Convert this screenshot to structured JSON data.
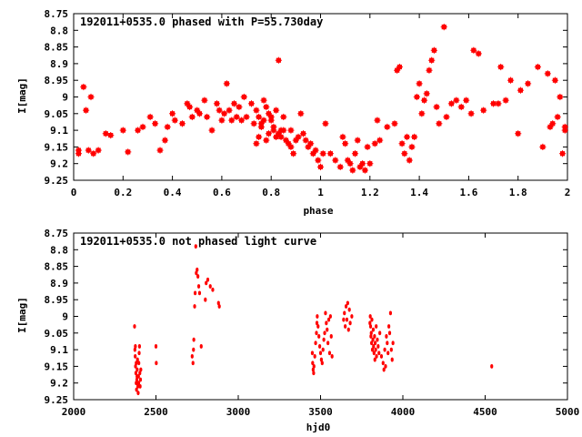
{
  "chart_data": [
    {
      "type": "scatter",
      "title": "192011+0535.0 phased with P=55.730day",
      "xlabel": "phase",
      "ylabel": "I[mag]",
      "xlim": [
        0,
        2
      ],
      "ylim": [
        8.75,
        9.25
      ],
      "y_inverted": true,
      "xticks": [
        "0",
        "0.2",
        "0.4",
        "0.6",
        "0.8",
        "1",
        "1.2",
        "1.4",
        "1.6",
        "1.8",
        "2"
      ],
      "yticks": [
        "8.75",
        "8.8",
        "8.85",
        "8.9",
        "8.95",
        "9",
        "9.05",
        "9.1",
        "9.15",
        "9.2",
        "9.25"
      ],
      "grid": false,
      "marker": "star",
      "color": "#ff0000",
      "points": [
        [
          0.02,
          9.16
        ],
        [
          0.02,
          9.17
        ],
        [
          0.04,
          8.97
        ],
        [
          0.05,
          9.04
        ],
        [
          0.06,
          9.16
        ],
        [
          0.07,
          9.0
        ],
        [
          0.08,
          9.17
        ],
        [
          0.1,
          9.16
        ],
        [
          0.13,
          9.11
        ],
        [
          0.15,
          9.115
        ],
        [
          0.2,
          9.1
        ],
        [
          0.22,
          9.165
        ],
        [
          0.26,
          9.1
        ],
        [
          0.28,
          9.09
        ],
        [
          0.31,
          9.06
        ],
        [
          0.33,
          9.08
        ],
        [
          0.35,
          9.16
        ],
        [
          0.37,
          9.13
        ],
        [
          0.38,
          9.09
        ],
        [
          0.4,
          9.05
        ],
        [
          0.41,
          9.07
        ],
        [
          0.44,
          9.08
        ],
        [
          0.46,
          9.02
        ],
        [
          0.47,
          9.03
        ],
        [
          0.48,
          9.06
        ],
        [
          0.5,
          9.04
        ],
        [
          0.51,
          9.05
        ],
        [
          0.53,
          9.01
        ],
        [
          0.54,
          9.06
        ],
        [
          0.56,
          9.1
        ],
        [
          0.58,
          9.02
        ],
        [
          0.59,
          9.04
        ],
        [
          0.6,
          9.07
        ],
        [
          0.61,
          9.05
        ],
        [
          0.62,
          8.96
        ],
        [
          0.63,
          9.04
        ],
        [
          0.64,
          9.07
        ],
        [
          0.65,
          9.02
        ],
        [
          0.66,
          9.06
        ],
        [
          0.67,
          9.03
        ],
        [
          0.68,
          9.07
        ],
        [
          0.69,
          9.0
        ],
        [
          0.7,
          9.06
        ],
        [
          0.72,
          9.02
        ],
        [
          0.73,
          9.08
        ],
        [
          0.74,
          9.04
        ],
        [
          0.75,
          9.06
        ],
        [
          0.76,
          9.08
        ],
        [
          0.77,
          9.01
        ],
        [
          0.78,
          9.03
        ],
        [
          0.79,
          9.05
        ],
        [
          0.8,
          9.07
        ],
        [
          0.81,
          9.09
        ],
        [
          0.82,
          9.04
        ],
        [
          0.83,
          9.11
        ],
        [
          0.84,
          9.12
        ],
        [
          0.85,
          9.1
        ],
        [
          0.86,
          9.13
        ],
        [
          0.87,
          9.14
        ],
        [
          0.88,
          9.1
        ],
        [
          0.74,
          9.14
        ],
        [
          0.75,
          9.12
        ],
        [
          0.76,
          9.09
        ],
        [
          0.77,
          9.07
        ],
        [
          0.78,
          9.13
        ],
        [
          0.79,
          9.11
        ],
        [
          0.8,
          9.06
        ],
        [
          0.81,
          9.1
        ],
        [
          0.82,
          9.12
        ],
        [
          0.83,
          8.89
        ],
        [
          0.84,
          9.1
        ],
        [
          0.85,
          9.06
        ],
        [
          0.88,
          9.15
        ],
        [
          0.89,
          9.17
        ],
        [
          0.9,
          9.13
        ],
        [
          0.91,
          9.12
        ],
        [
          0.92,
          9.05
        ],
        [
          0.93,
          9.11
        ],
        [
          0.94,
          9.13
        ],
        [
          0.95,
          9.15
        ],
        [
          0.96,
          9.14
        ],
        [
          0.97,
          9.17
        ],
        [
          0.98,
          9.16
        ],
        [
          0.99,
          9.19
        ],
        [
          1.0,
          9.21
        ],
        [
          1.01,
          9.17
        ],
        [
          1.02,
          9.08
        ],
        [
          1.04,
          9.17
        ],
        [
          1.06,
          9.19
        ],
        [
          1.08,
          9.21
        ],
        [
          1.09,
          9.12
        ],
        [
          1.1,
          9.14
        ],
        [
          1.11,
          9.19
        ],
        [
          1.12,
          9.2
        ],
        [
          1.13,
          9.22
        ],
        [
          1.14,
          9.17
        ],
        [
          1.15,
          9.13
        ],
        [
          1.16,
          9.21
        ],
        [
          1.17,
          9.2
        ],
        [
          1.18,
          9.22
        ],
        [
          1.19,
          9.15
        ],
        [
          1.2,
          9.2
        ],
        [
          1.22,
          9.14
        ],
        [
          1.23,
          9.07
        ],
        [
          1.24,
          9.13
        ],
        [
          1.27,
          9.09
        ],
        [
          1.3,
          9.08
        ],
        [
          1.31,
          8.92
        ],
        [
          1.32,
          8.91
        ],
        [
          1.33,
          9.14
        ],
        [
          1.34,
          9.17
        ],
        [
          1.35,
          9.12
        ],
        [
          1.36,
          9.19
        ],
        [
          1.37,
          9.15
        ],
        [
          1.38,
          9.12
        ],
        [
          1.39,
          9.0
        ],
        [
          1.4,
          8.96
        ],
        [
          1.41,
          9.05
        ],
        [
          1.42,
          9.01
        ],
        [
          1.43,
          8.99
        ],
        [
          1.44,
          8.92
        ],
        [
          1.45,
          8.89
        ],
        [
          1.46,
          8.86
        ],
        [
          1.47,
          9.03
        ],
        [
          1.48,
          9.08
        ],
        [
          1.5,
          8.79
        ],
        [
          1.51,
          9.06
        ],
        [
          1.53,
          9.02
        ],
        [
          1.55,
          9.01
        ],
        [
          1.57,
          9.03
        ],
        [
          1.59,
          9.01
        ],
        [
          1.61,
          9.05
        ],
        [
          1.62,
          8.86
        ],
        [
          1.64,
          8.87
        ],
        [
          1.66,
          9.04
        ],
        [
          1.7,
          9.02
        ],
        [
          1.72,
          9.02
        ],
        [
          1.73,
          8.91
        ],
        [
          1.75,
          9.01
        ],
        [
          1.77,
          8.95
        ],
        [
          1.8,
          9.11
        ],
        [
          1.81,
          8.98
        ],
        [
          1.84,
          8.96
        ],
        [
          1.88,
          8.91
        ],
        [
          1.9,
          9.15
        ],
        [
          1.92,
          8.93
        ],
        [
          1.93,
          9.09
        ],
        [
          1.94,
          9.08
        ],
        [
          1.95,
          8.95
        ],
        [
          1.96,
          9.06
        ],
        [
          1.97,
          9.0
        ],
        [
          1.98,
          9.17
        ],
        [
          1.99,
          9.1
        ],
        [
          1.99,
          9.09
        ]
      ]
    },
    {
      "type": "scatter",
      "title": "192011+0535.0 not phased light curve",
      "xlabel": "hjd0",
      "ylabel": "I[mag]",
      "xlim": [
        2000,
        5000
      ],
      "ylim": [
        8.75,
        9.25
      ],
      "y_inverted": true,
      "xticks": [
        "2000",
        "2500",
        "3000",
        "3500",
        "4000",
        "4500",
        "5000"
      ],
      "yticks": [
        "8.75",
        "8.8",
        "8.85",
        "8.9",
        "8.95",
        "9",
        "9.05",
        "9.1",
        "9.15",
        "9.2",
        "9.25"
      ],
      "grid": false,
      "marker": "dot",
      "color": "#ff0000",
      "points": [
        [
          2370,
          9.03
        ],
        [
          2372,
          9.1
        ],
        [
          2374,
          9.12
        ],
        [
          2376,
          9.15
        ],
        [
          2378,
          9.17
        ],
        [
          2380,
          9.2
        ],
        [
          2382,
          9.22
        ],
        [
          2384,
          9.19
        ],
        [
          2386,
          9.16
        ],
        [
          2388,
          9.13
        ],
        [
          2390,
          9.21
        ],
        [
          2392,
          9.23
        ],
        [
          2394,
          9.18
        ],
        [
          2396,
          9.14
        ],
        [
          2398,
          9.11
        ],
        [
          2400,
          9.09
        ],
        [
          2402,
          9.17
        ],
        [
          2404,
          9.21
        ],
        [
          2406,
          9.19
        ],
        [
          2408,
          9.16
        ],
        [
          2375,
          9.09
        ],
        [
          2380,
          9.14
        ],
        [
          2385,
          9.18
        ],
        [
          2395,
          9.2
        ],
        [
          2500,
          9.09
        ],
        [
          2502,
          9.14
        ],
        [
          2720,
          9.12
        ],
        [
          2725,
          9.14
        ],
        [
          2728,
          9.1
        ],
        [
          2730,
          9.07
        ],
        [
          2735,
          8.97
        ],
        [
          2738,
          8.93
        ],
        [
          2742,
          8.79
        ],
        [
          2745,
          8.87
        ],
        [
          2750,
          8.86
        ],
        [
          2755,
          8.88
        ],
        [
          2760,
          8.91
        ],
        [
          2765,
          8.93
        ],
        [
          2775,
          9.09
        ],
        [
          2800,
          8.95
        ],
        [
          2805,
          8.9
        ],
        [
          2815,
          8.89
        ],
        [
          2830,
          8.91
        ],
        [
          2845,
          8.92
        ],
        [
          2880,
          8.96
        ],
        [
          2885,
          8.97
        ],
        [
          3450,
          9.11
        ],
        [
          3452,
          9.14
        ],
        [
          3455,
          9.16
        ],
        [
          3458,
          9.17
        ],
        [
          3460,
          9.15
        ],
        [
          3465,
          9.12
        ],
        [
          3470,
          9.08
        ],
        [
          3475,
          9.05
        ],
        [
          3478,
          9.02
        ],
        [
          3480,
          9.0
        ],
        [
          3485,
          9.03
        ],
        [
          3490,
          9.06
        ],
        [
          3495,
          9.09
        ],
        [
          3500,
          9.11
        ],
        [
          3505,
          9.13
        ],
        [
          3510,
          9.14
        ],
        [
          3515,
          9.1
        ],
        [
          3520,
          9.07
        ],
        [
          3525,
          9.05
        ],
        [
          3530,
          8.99
        ],
        [
          3535,
          9.02
        ],
        [
          3540,
          9.04
        ],
        [
          3545,
          9.08
        ],
        [
          3550,
          9.01
        ],
        [
          3555,
          9.11
        ],
        [
          3560,
          9.0
        ],
        [
          3565,
          9.06
        ],
        [
          3570,
          9.12
        ],
        [
          3640,
          9.01
        ],
        [
          3645,
          8.99
        ],
        [
          3650,
          9.03
        ],
        [
          3655,
          8.97
        ],
        [
          3660,
          9.01
        ],
        [
          3665,
          8.96
        ],
        [
          3670,
          9.04
        ],
        [
          3675,
          8.98
        ],
        [
          3680,
          9.02
        ],
        [
          3690,
          9.0
        ],
        [
          3800,
          9.02
        ],
        [
          3802,
          9.0
        ],
        [
          3804,
          9.03
        ],
        [
          3806,
          9.06
        ],
        [
          3808,
          9.05
        ],
        [
          3810,
          9.08
        ],
        [
          3812,
          9.01
        ],
        [
          3815,
          9.1
        ],
        [
          3818,
          9.07
        ],
        [
          3820,
          9.04
        ],
        [
          3822,
          9.09
        ],
        [
          3825,
          9.11
        ],
        [
          3828,
          9.06
        ],
        [
          3830,
          9.13
        ],
        [
          3832,
          9.08
        ],
        [
          3835,
          9.1
        ],
        [
          3838,
          9.03
        ],
        [
          3840,
          9.12
        ],
        [
          3845,
          9.07
        ],
        [
          3850,
          9.09
        ],
        [
          3855,
          9.11
        ],
        [
          3860,
          9.05
        ],
        [
          3870,
          9.12
        ],
        [
          3880,
          9.14
        ],
        [
          3885,
          9.16
        ],
        [
          3890,
          9.1
        ],
        [
          3895,
          9.15
        ],
        [
          3900,
          9.06
        ],
        [
          3905,
          9.08
        ],
        [
          3910,
          9.11
        ],
        [
          3915,
          9.03
        ],
        [
          3920,
          9.05
        ],
        [
          3925,
          8.99
        ],
        [
          3930,
          9.1
        ],
        [
          3935,
          9.13
        ],
        [
          3940,
          9.08
        ],
        [
          4540,
          9.15
        ]
      ]
    }
  ]
}
